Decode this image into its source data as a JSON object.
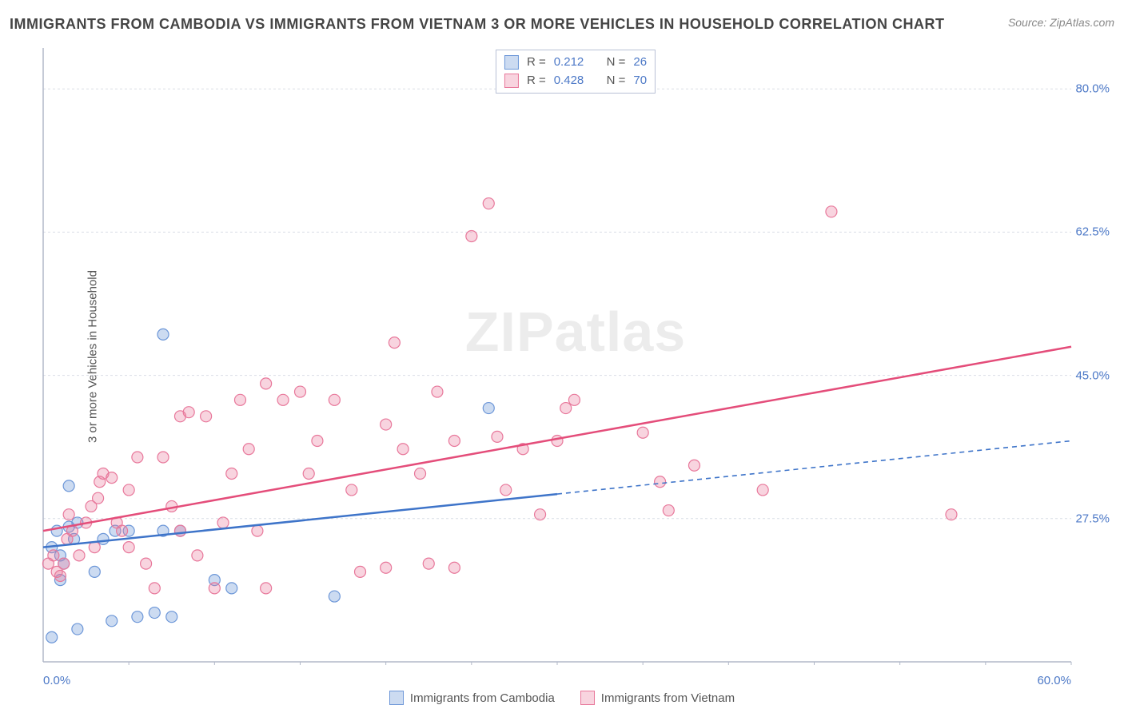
{
  "title": "IMMIGRANTS FROM CAMBODIA VS IMMIGRANTS FROM VIETNAM 3 OR MORE VEHICLES IN HOUSEHOLD CORRELATION CHART",
  "source": "Source: ZipAtlas.com",
  "yaxis_label": "3 or more Vehicles in Household",
  "watermark": "ZIPatlas",
  "chart": {
    "type": "scatter-with-trendlines",
    "background_color": "#ffffff",
    "grid_color": "#d9dde6",
    "grid_dash": "3,3",
    "axis_color": "#b2b8c9",
    "xlim": [
      0,
      60
    ],
    "ylim": [
      10,
      85
    ],
    "x_ticks": [
      0,
      60
    ],
    "x_tick_labels": [
      "0.0%",
      "60.0%"
    ],
    "x_minor_ticks": [
      5,
      10,
      15,
      20,
      25,
      30,
      35,
      40,
      45,
      50,
      55,
      60
    ],
    "y_ticks": [
      27.5,
      45.0,
      62.5,
      80.0
    ],
    "y_tick_labels": [
      "27.5%",
      "45.0%",
      "62.5%",
      "80.0%"
    ],
    "series": [
      {
        "name": "Immigrants from Cambodia",
        "key": "cambodia",
        "color_fill": "rgba(109,151,216,0.35)",
        "color_stroke": "#6d97d8",
        "marker_radius": 7,
        "trend_color": "#3e74c9",
        "trend_width": 2.5,
        "trend_solid": {
          "x1": 0,
          "y1": 24,
          "x2": 30,
          "y2": 30.5
        },
        "trend_dash": {
          "x1": 30,
          "y1": 30.5,
          "x2": 60,
          "y2": 37
        },
        "R": "0.212",
        "N": "26",
        "points": [
          {
            "x": 0.5,
            "y": 24
          },
          {
            "x": 0.8,
            "y": 26
          },
          {
            "x": 1.0,
            "y": 23
          },
          {
            "x": 1.2,
            "y": 22
          },
          {
            "x": 1.0,
            "y": 20
          },
          {
            "x": 1.5,
            "y": 26.5
          },
          {
            "x": 1.8,
            "y": 25
          },
          {
            "x": 2.0,
            "y": 27
          },
          {
            "x": 1.5,
            "y": 31.5
          },
          {
            "x": 0.5,
            "y": 13
          },
          {
            "x": 2.0,
            "y": 14
          },
          {
            "x": 4.0,
            "y": 15
          },
          {
            "x": 3.0,
            "y": 21
          },
          {
            "x": 3.5,
            "y": 25
          },
          {
            "x": 4.2,
            "y": 26
          },
          {
            "x": 5.0,
            "y": 26
          },
          {
            "x": 5.5,
            "y": 15.5
          },
          {
            "x": 6.5,
            "y": 16
          },
          {
            "x": 7.5,
            "y": 15.5
          },
          {
            "x": 7.0,
            "y": 26
          },
          {
            "x": 8.0,
            "y": 26
          },
          {
            "x": 10.0,
            "y": 20
          },
          {
            "x": 11.0,
            "y": 19
          },
          {
            "x": 17.0,
            "y": 18
          },
          {
            "x": 7.0,
            "y": 50
          },
          {
            "x": 26.0,
            "y": 41
          }
        ]
      },
      {
        "name": "Immigrants from Vietnam",
        "key": "vietnam",
        "color_fill": "rgba(232,120,155,0.32)",
        "color_stroke": "#e8789b",
        "marker_radius": 7,
        "trend_color": "#e44d7a",
        "trend_width": 2.5,
        "trend_solid": {
          "x1": 0,
          "y1": 26,
          "x2": 60,
          "y2": 48.5
        },
        "trend_dash": null,
        "R": "0.428",
        "N": "70",
        "points": [
          {
            "x": 0.3,
            "y": 22
          },
          {
            "x": 0.6,
            "y": 23
          },
          {
            "x": 0.8,
            "y": 21
          },
          {
            "x": 1.2,
            "y": 22
          },
          {
            "x": 1.0,
            "y": 20.5
          },
          {
            "x": 1.4,
            "y": 25
          },
          {
            "x": 1.7,
            "y": 26
          },
          {
            "x": 2.1,
            "y": 23
          },
          {
            "x": 1.5,
            "y": 28
          },
          {
            "x": 2.5,
            "y": 27
          },
          {
            "x": 2.8,
            "y": 29
          },
          {
            "x": 3.0,
            "y": 24
          },
          {
            "x": 3.2,
            "y": 30
          },
          {
            "x": 3.3,
            "y": 32
          },
          {
            "x": 3.5,
            "y": 33
          },
          {
            "x": 4.0,
            "y": 32.5
          },
          {
            "x": 4.3,
            "y": 27
          },
          {
            "x": 4.6,
            "y": 26
          },
          {
            "x": 5.0,
            "y": 31
          },
          {
            "x": 5.5,
            "y": 35
          },
          {
            "x": 5.0,
            "y": 24
          },
          {
            "x": 6.0,
            "y": 22
          },
          {
            "x": 6.5,
            "y": 19
          },
          {
            "x": 7.0,
            "y": 35
          },
          {
            "x": 7.5,
            "y": 29
          },
          {
            "x": 8.0,
            "y": 40
          },
          {
            "x": 8.5,
            "y": 40.5
          },
          {
            "x": 8.0,
            "y": 26
          },
          {
            "x": 9.0,
            "y": 23
          },
          {
            "x": 9.5,
            "y": 40
          },
          {
            "x": 10.0,
            "y": 19
          },
          {
            "x": 10.5,
            "y": 27
          },
          {
            "x": 11.0,
            "y": 33
          },
          {
            "x": 11.5,
            "y": 42
          },
          {
            "x": 12.0,
            "y": 36
          },
          {
            "x": 12.5,
            "y": 26
          },
          {
            "x": 13.0,
            "y": 44
          },
          {
            "x": 14.0,
            "y": 42
          },
          {
            "x": 13.0,
            "y": 19
          },
          {
            "x": 15.0,
            "y": 43
          },
          {
            "x": 15.5,
            "y": 33
          },
          {
            "x": 16.0,
            "y": 37
          },
          {
            "x": 17.0,
            "y": 42
          },
          {
            "x": 18.0,
            "y": 31
          },
          {
            "x": 18.5,
            "y": 21
          },
          {
            "x": 20.0,
            "y": 21.5
          },
          {
            "x": 20.0,
            "y": 39
          },
          {
            "x": 20.5,
            "y": 49
          },
          {
            "x": 21.0,
            "y": 36
          },
          {
            "x": 22.0,
            "y": 33
          },
          {
            "x": 22.5,
            "y": 22
          },
          {
            "x": 23.0,
            "y": 43
          },
          {
            "x": 24.0,
            "y": 37
          },
          {
            "x": 24.0,
            "y": 21.5
          },
          {
            "x": 25.0,
            "y": 62
          },
          {
            "x": 26.0,
            "y": 66
          },
          {
            "x": 26.5,
            "y": 37.5
          },
          {
            "x": 27.0,
            "y": 31
          },
          {
            "x": 28.0,
            "y": 36
          },
          {
            "x": 29.0,
            "y": 28
          },
          {
            "x": 30.0,
            "y": 37
          },
          {
            "x": 30.5,
            "y": 41
          },
          {
            "x": 31.0,
            "y": 42
          },
          {
            "x": 35.0,
            "y": 38
          },
          {
            "x": 36.0,
            "y": 32
          },
          {
            "x": 36.5,
            "y": 28.5
          },
          {
            "x": 38.0,
            "y": 34
          },
          {
            "x": 42.0,
            "y": 31
          },
          {
            "x": 46.0,
            "y": 65
          },
          {
            "x": 53.0,
            "y": 28
          }
        ]
      }
    ],
    "top_legend": {
      "rows": [
        {
          "swatch_fill": "rgba(109,151,216,0.35)",
          "swatch_stroke": "#6d97d8",
          "r": "0.212",
          "n": "26"
        },
        {
          "swatch_fill": "rgba(232,120,155,0.32)",
          "swatch_stroke": "#e8789b",
          "r": "0.428",
          "n": "70"
        }
      ],
      "r_label": "R  =",
      "n_label": "N  ="
    },
    "bottom_legend": [
      {
        "swatch_fill": "rgba(109,151,216,0.35)",
        "swatch_stroke": "#6d97d8",
        "label": "Immigrants from Cambodia"
      },
      {
        "swatch_fill": "rgba(232,120,155,0.32)",
        "swatch_stroke": "#e8789b",
        "label": "Immigrants from Vietnam"
      }
    ]
  }
}
